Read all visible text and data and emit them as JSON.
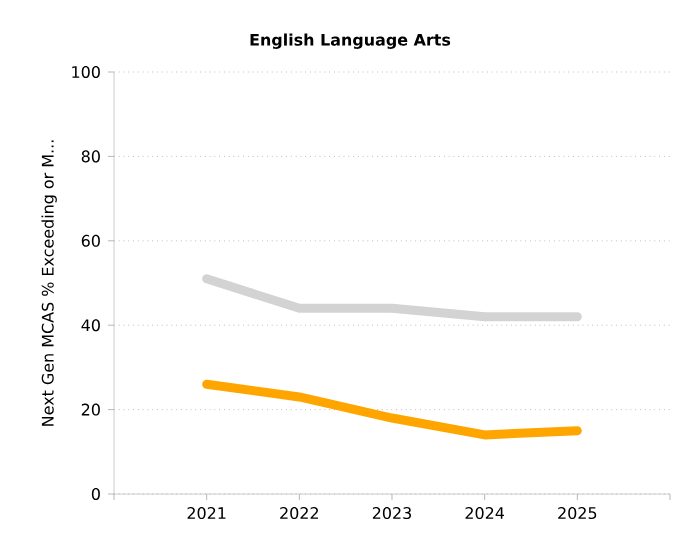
{
  "chart_data": {
    "type": "line",
    "title": "English Language Arts",
    "ylabel": "Next Gen MCAS % Exceeding or M...",
    "x": [
      2021,
      2022,
      2023,
      2024,
      2025
    ],
    "series": [
      {
        "color": "#d3d3d3",
        "values": [
          51,
          44,
          44,
          42,
          42
        ]
      },
      {
        "color": "#ffa500",
        "values": [
          26,
          23,
          18,
          14,
          15
        ]
      }
    ],
    "xlim": [
      2020,
      2026
    ],
    "xticks": [
      {
        "value": 2020,
        "label": null
      },
      2021,
      2022,
      2023,
      2024,
      2025,
      {
        "value": 2026,
        "label": null
      }
    ],
    "ylim": [
      0,
      100
    ],
    "yticks": [
      0,
      20,
      40,
      60,
      80,
      100
    ],
    "grid": "y",
    "marker": "none",
    "line_style": "solid"
  }
}
